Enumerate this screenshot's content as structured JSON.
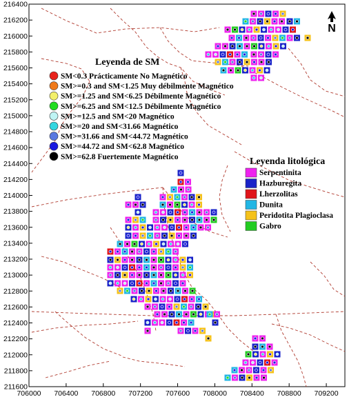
{
  "map": {
    "x_ticks": [
      "706000",
      "706400",
      "706800",
      "707200",
      "707600",
      "708000",
      "708400",
      "708800",
      "709200"
    ],
    "y_ticks": [
      "216400",
      "216200",
      "216000",
      "215800",
      "215600",
      "215400",
      "215200",
      "215000",
      "214800",
      "214600",
      "214400",
      "214200",
      "214000",
      "213800",
      "213600",
      "213400",
      "213200",
      "213000",
      "212800",
      "212600",
      "212400",
      "212200",
      "212000",
      "211800",
      "211600"
    ],
    "x_range": [
      706000,
      709400
    ],
    "y_range": [
      211600,
      216400
    ],
    "north_label": "N"
  },
  "sm_legend": {
    "title": "Leyenda de SM",
    "items": [
      {
        "label": "SM<0.3 Prácticamente No Magnético",
        "color": "#e8231c"
      },
      {
        "label": "SM>=0.3 and SM<1.25 Muy débilmente Magnético",
        "color": "#f07a1a"
      },
      {
        "label": "SM>=1.25 and SM<6.25 Débilmente Magnético",
        "color": "#f2ef6a"
      },
      {
        "label": "SM>=6.25 and SM<12.5 Débilmente Magnético",
        "color": "#22dd22"
      },
      {
        "label": "SM>=12.5 and SM<20 Magnético",
        "color": "#bff4f4"
      },
      {
        "label": "SM>=20 and SM<31.66 Magnético",
        "color": "#33d6e0"
      },
      {
        "label": "SM>=31.66 and SM<44.72 Magnético",
        "color": "#5a78e0"
      },
      {
        "label": "SM>=44.72 and SM<62.8 Magnético",
        "color": "#1a1ae0"
      },
      {
        "label": "SM>=62.8 Fuertemente Magnético",
        "color": "#000000"
      }
    ]
  },
  "litho_legend": {
    "title": "Leyenda litológica",
    "items": [
      {
        "label": "Serpentinita",
        "color": "#ee22ee"
      },
      {
        "label": "Hazburegita",
        "color": "#1a23c8"
      },
      {
        "label": "Lherzolitas",
        "color": "#e0141a"
      },
      {
        "label": "Dunita",
        "color": "#22b6e4"
      },
      {
        "label": "Peridotita Plagioclasa",
        "color": "#f5c21a"
      },
      {
        "label": "Gabro",
        "color": "#22cc22"
      }
    ]
  },
  "colors": {
    "fault_lines": "#b03a2e",
    "frame": "#000000",
    "background": "#ffffff"
  }
}
